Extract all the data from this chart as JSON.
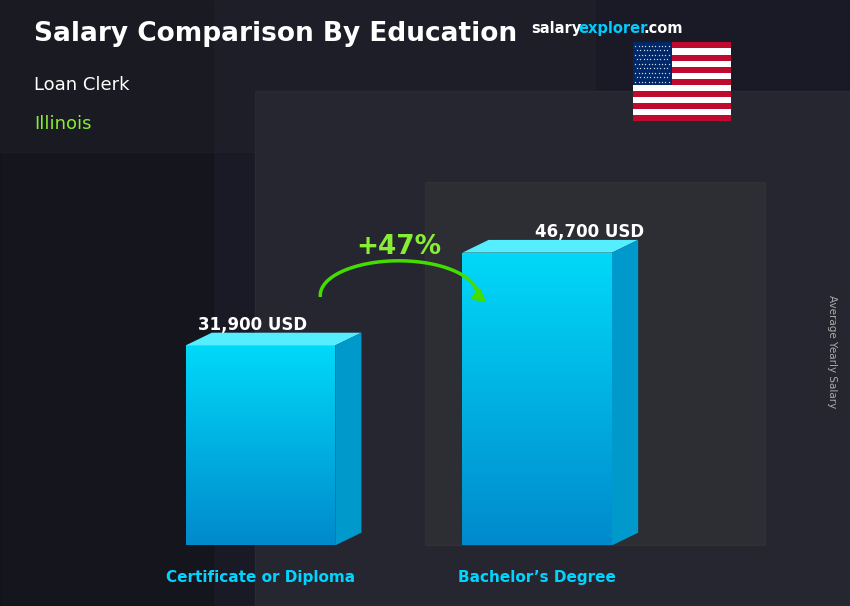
{
  "title": "Salary Comparison By Education",
  "subtitle_job": "Loan Clerk",
  "subtitle_location": "Illinois",
  "categories": [
    "Certificate or Diploma",
    "Bachelor’s Degree"
  ],
  "values": [
    31900,
    46700
  ],
  "value_labels": [
    "31,900 USD",
    "46,700 USD"
  ],
  "pct_change": "+47%",
  "ylabel": "Average Yearly Salary",
  "bg_color": "#1c1c28",
  "title_color": "#ffffff",
  "subtitle_job_color": "#ffffff",
  "subtitle_location_color": "#88ee33",
  "category_label_color": "#00d4ff",
  "value_label_color": "#ffffff",
  "pct_color": "#88ee33",
  "bar_front_top": "#00d8f8",
  "bar_front_bottom": "#0088cc",
  "bar_top_face": "#66eeff",
  "bar_side_face": "#0099cc",
  "arrow_color": "#44dd00",
  "website_salary_color": "#ffffff",
  "website_explorer_color": "#00ccff",
  "website_com_color": "#ffffff",
  "ylabel_color": "#aaaaaa",
  "bar_positions": [
    2.8,
    6.5
  ],
  "bar_width": 2.0,
  "ylim_max": 58000,
  "xlim": [
    0,
    10
  ]
}
